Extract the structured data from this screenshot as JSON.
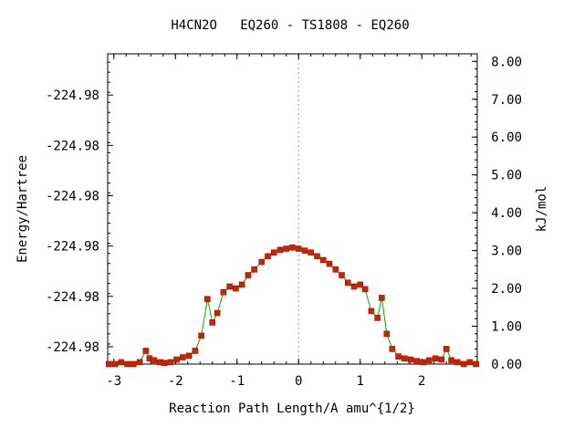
{
  "chart_data": {
    "type": "line",
    "title": "H4CN2O   EQ260 - TS1808 - EQ260",
    "xlabel": "Reaction Path Length/A amu^{1/2}",
    "ylabel_left": "Energy/Hartree",
    "ylabel_right": "kJ/mol",
    "xlim": [
      -3.1,
      2.9
    ],
    "ylim_right": [
      0.0,
      8.2
    ],
    "x_ticks": [
      -3,
      -2,
      -1,
      0,
      1,
      2
    ],
    "x_tick_labels": [
      "-3",
      "-2",
      "-1",
      "0",
      "1",
      "2"
    ],
    "left_tick_values": [
      0.46,
      1.79,
      3.12,
      4.45,
      5.78,
      7.11
    ],
    "left_tick_labels": [
      "-224.98",
      "-224.98",
      "-224.98",
      "-224.98",
      "-224.98",
      "-224.98"
    ],
    "right_tick_values": [
      0,
      1,
      2,
      3,
      4,
      5,
      6,
      7,
      8
    ],
    "right_tick_labels": [
      "0.00",
      "1.00",
      "2.00",
      "3.00",
      "4.00",
      "5.00",
      "6.00",
      "7.00",
      "8.00"
    ],
    "ts_line_x": 0.0,
    "line_color": "#00aa00",
    "marker_color": "#cc2200",
    "series": [
      {
        "x": [
          -3.08,
          -2.98,
          -2.88,
          -2.78,
          -2.68,
          -2.58,
          -2.48,
          -2.42,
          -2.35,
          -2.25,
          -2.18,
          -2.08,
          -1.98,
          -1.88,
          -1.78,
          -1.68,
          -1.58,
          -1.48,
          -1.4,
          -1.32,
          -1.22,
          -1.12,
          -1.02,
          -0.92,
          -0.82,
          -0.72,
          -0.6,
          -0.5,
          -0.4,
          -0.3,
          -0.2,
          -0.1,
          0.0,
          0.1,
          0.2,
          0.3,
          0.4,
          0.5,
          0.6,
          0.7,
          0.8,
          0.9,
          1.0,
          1.08,
          1.18,
          1.28,
          1.35,
          1.43,
          1.52,
          1.62,
          1.72,
          1.82,
          1.92,
          2.02,
          2.12,
          2.22,
          2.32,
          2.4,
          2.48,
          2.58,
          2.68,
          2.78,
          2.88
        ],
        "y": [
          0.0,
          0.0,
          0.05,
          0.0,
          0.0,
          0.05,
          0.35,
          0.15,
          0.1,
          0.05,
          0.03,
          0.05,
          0.12,
          0.18,
          0.22,
          0.35,
          0.75,
          1.72,
          1.1,
          1.35,
          1.9,
          2.05,
          2.0,
          2.1,
          2.35,
          2.5,
          2.7,
          2.85,
          2.95,
          3.02,
          3.05,
          3.08,
          3.05,
          3.0,
          2.95,
          2.85,
          2.75,
          2.65,
          2.5,
          2.35,
          2.15,
          2.05,
          2.1,
          1.98,
          1.4,
          1.22,
          1.75,
          0.8,
          0.4,
          0.2,
          0.15,
          0.12,
          0.08,
          0.05,
          0.1,
          0.15,
          0.12,
          0.4,
          0.1,
          0.05,
          0.0,
          0.05,
          0.0
        ]
      }
    ]
  }
}
